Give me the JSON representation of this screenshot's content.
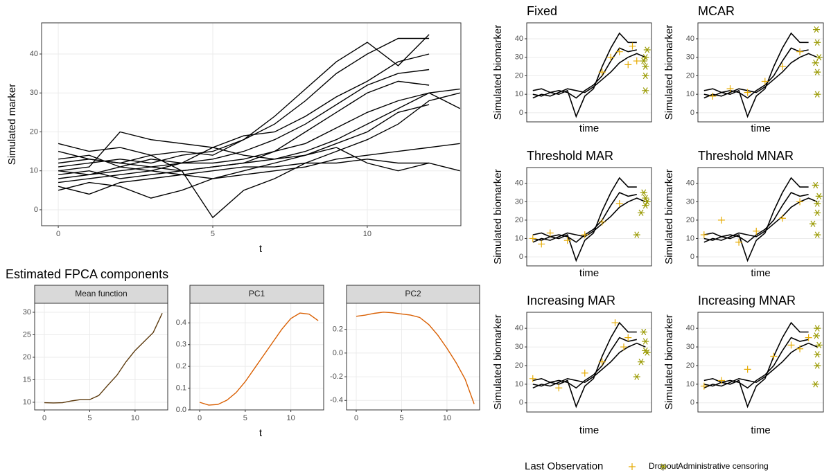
{
  "chart_data": [
    {
      "type": "line",
      "xlabel": "t",
      "ylabel": "Simulated marker",
      "color": "#000000",
      "x": [
        0,
        1,
        2,
        3,
        4,
        5,
        6,
        7,
        8,
        9,
        10,
        11,
        12,
        13
      ],
      "xlim": [
        -0.54,
        13.03
      ],
      "ylim": [
        -4.1,
        48
      ],
      "xticks": [
        0,
        5,
        10
      ],
      "yticks": [
        0,
        10,
        20,
        30,
        40
      ],
      "grid": true,
      "series": [
        {
          "values": [
            17,
            15,
            16,
            14,
            15,
            14,
            18,
            24,
            31,
            38,
            43,
            37,
            45,
            null
          ]
        },
        {
          "values": [
            10,
            11,
            20,
            18,
            17,
            16,
            14,
            13,
            15,
            18,
            22,
            26,
            30,
            31
          ]
        },
        {
          "values": [
            8,
            9,
            10,
            11,
            10,
            -2,
            5,
            8,
            12,
            15,
            18,
            22,
            28,
            30
          ]
        },
        {
          "values": [
            5,
            7,
            6,
            3,
            5,
            8,
            10,
            12,
            14,
            17,
            20,
            25,
            27,
            null
          ]
        },
        {
          "values": [
            12,
            13,
            12,
            11,
            12,
            13,
            15,
            18,
            22,
            27,
            32,
            35,
            36,
            null
          ]
        },
        {
          "values": [
            15,
            13,
            12,
            14,
            10,
            11,
            12,
            13,
            14,
            16,
            12,
            10,
            12,
            10
          ]
        },
        {
          "values": [
            9,
            10,
            8,
            9,
            10,
            11,
            12,
            15,
            20,
            25,
            30,
            33,
            32,
            null
          ]
        },
        {
          "values": [
            11,
            12,
            13,
            12,
            14,
            15,
            18,
            22,
            28,
            35,
            40,
            44,
            44,
            null
          ]
        },
        {
          "values": [
            7,
            8,
            9,
            10,
            9,
            8,
            9,
            10,
            11,
            13,
            14,
            15,
            16,
            17
          ]
        },
        {
          "values": [
            13,
            14,
            11,
            10,
            12,
            16,
            19,
            20,
            24,
            29,
            33,
            38,
            40,
            null
          ]
        },
        {
          "values": [
            6,
            4,
            7,
            8,
            9,
            10,
            11,
            11,
            12,
            12,
            13,
            12,
            12,
            null
          ]
        },
        {
          "values": [
            10,
            9,
            11,
            13,
            12,
            12,
            13,
            15,
            17,
            21,
            25,
            28,
            30,
            26
          ]
        }
      ]
    },
    {
      "type": "line",
      "title": "Estimated FPCA components",
      "strip": "Mean function",
      "color": "#5C3A0E",
      "x": [
        0,
        1,
        2,
        3,
        4,
        5,
        6,
        7,
        8,
        9,
        10,
        11,
        12,
        13
      ],
      "xlim": [
        -1.07,
        13.6
      ],
      "ylim": [
        8.3,
        32
      ],
      "xticks": [
        0,
        5,
        10
      ],
      "yticks": [
        10,
        15,
        20,
        25,
        30
      ],
      "grid": true,
      "series": [
        {
          "values": [
            9.9,
            9.85,
            9.9,
            10.3,
            10.6,
            10.6,
            11.5,
            13.8,
            16,
            19,
            21.5,
            23.5,
            25.5,
            29.8
          ]
        }
      ]
    },
    {
      "type": "line",
      "strip": "PC1",
      "xlabel": "t",
      "color": "#D95F02",
      "x": [
        0,
        1,
        2,
        3,
        4,
        5,
        6,
        7,
        8,
        9,
        10,
        11,
        12,
        13
      ],
      "xlim": [
        -1.07,
        13.6
      ],
      "ylim": [
        0,
        0.49
      ],
      "xticks": [
        0,
        5,
        10
      ],
      "yticks": [
        {
          "value": 0,
          "label": "0.0"
        },
        0.1,
        0.2,
        0.3,
        0.4
      ],
      "grid": true,
      "series": [
        {
          "values": [
            0.035,
            0.022,
            0.025,
            0.045,
            0.08,
            0.13,
            0.19,
            0.25,
            0.31,
            0.37,
            0.42,
            0.445,
            0.44,
            0.41
          ]
        }
      ]
    },
    {
      "type": "line",
      "strip": "PC2",
      "color": "#D95F02",
      "x": [
        0,
        1,
        2,
        3,
        4,
        5,
        6,
        7,
        8,
        9,
        10,
        11,
        12,
        13
      ],
      "xlim": [
        -1.07,
        13.6
      ],
      "ylim": [
        -0.48,
        0.42
      ],
      "xticks": [
        0,
        5,
        10
      ],
      "yticks": [
        -0.4,
        -0.2,
        {
          "value": 0,
          "label": "0.0"
        },
        0.2
      ],
      "grid": true,
      "series": [
        {
          "values": [
            0.31,
            0.32,
            0.335,
            0.345,
            0.34,
            0.33,
            0.32,
            0.3,
            0.24,
            0.15,
            0.04,
            -0.08,
            -0.22,
            -0.43
          ]
        }
      ]
    },
    {
      "type": "line",
      "title": "Fixed",
      "xlabel": "time",
      "ylabel": "Simulated biomarker",
      "color": "#000000",
      "x": [
        0,
        1,
        2,
        3,
        4,
        5,
        6,
        7,
        8,
        9,
        10,
        11,
        12,
        13
      ],
      "xlim": [
        -0.7,
        13.7
      ],
      "ylim": [
        -4.9,
        48.6
      ],
      "yticks": [
        0,
        10,
        20,
        30,
        40
      ],
      "grid": true,
      "series": [
        {
          "values": [
            10,
            9,
            11,
            12,
            11,
            8,
            12,
            15,
            20,
            28,
            35,
            33,
            34,
            null
          ]
        },
        {
          "values": [
            8,
            10,
            9,
            11,
            13,
            12,
            11,
            14,
            18,
            22,
            27,
            30,
            32,
            30
          ]
        },
        {
          "values": [
            12,
            13,
            11,
            10,
            12,
            -2,
            9,
            13,
            25,
            35,
            43,
            38,
            38,
            null
          ]
        }
      ],
      "points": [
        {
          "x": [
            8,
            9,
            10,
            11,
            11.5,
            12
          ],
          "y": [
            22,
            30,
            33,
            26,
            36,
            28
          ]
        },
        {
          "x": [
            13,
            13,
            13,
            13,
            13.2,
            12.8
          ],
          "y": [
            12,
            20,
            25,
            30,
            34,
            28
          ]
        }
      ]
    },
    {
      "type": "line",
      "title": "MCAR",
      "xlabel": "time",
      "ylabel": "Simulated biomarker",
      "color": "#000000",
      "x": [
        0,
        1,
        2,
        3,
        4,
        5,
        6,
        7,
        8,
        9,
        10,
        11,
        12,
        13
      ],
      "xlim": [
        -0.7,
        13.7
      ],
      "ylim": [
        -4.9,
        48.6
      ],
      "yticks": [
        0,
        10,
        20,
        30,
        40
      ],
      "grid": true,
      "series": [
        {
          "values": [
            10,
            9,
            11,
            12,
            11,
            8,
            12,
            15,
            20,
            28,
            35,
            33,
            34,
            null
          ]
        },
        {
          "values": [
            8,
            10,
            9,
            11,
            13,
            12,
            11,
            14,
            18,
            22,
            27,
            30,
            32,
            30
          ]
        },
        {
          "values": [
            12,
            13,
            11,
            10,
            12,
            -2,
            9,
            13,
            25,
            35,
            43,
            38,
            38,
            null
          ]
        }
      ],
      "points": [
        {
          "x": [
            1,
            3,
            5,
            7,
            9,
            11
          ],
          "y": [
            9,
            13,
            11,
            17,
            25,
            33
          ]
        },
        {
          "x": [
            13,
            13,
            12.8,
            13.2,
            13,
            12.9
          ],
          "y": [
            10,
            22,
            27,
            30,
            38,
            45
          ]
        }
      ]
    },
    {
      "type": "line",
      "title": "Threshold MAR",
      "xlabel": "time",
      "ylabel": "Simulated biomarker",
      "color": "#000000",
      "x": [
        0,
        1,
        2,
        3,
        4,
        5,
        6,
        7,
        8,
        9,
        10,
        11,
        12,
        13
      ],
      "xlim": [
        -0.7,
        13.7
      ],
      "ylim": [
        -4.9,
        48.6
      ],
      "yticks": [
        0,
        10,
        20,
        30,
        40
      ],
      "grid": true,
      "series": [
        {
          "values": [
            10,
            9,
            11,
            12,
            11,
            8,
            12,
            15,
            20,
            28,
            35,
            33,
            34,
            null
          ]
        },
        {
          "values": [
            8,
            10,
            9,
            11,
            13,
            12,
            11,
            14,
            18,
            22,
            27,
            30,
            32,
            30
          ]
        },
        {
          "values": [
            12,
            13,
            11,
            10,
            12,
            -2,
            9,
            13,
            25,
            35,
            43,
            38,
            38,
            null
          ]
        }
      ],
      "points": [
        {
          "x": [
            0,
            1,
            2,
            4,
            6,
            8,
            10
          ],
          "y": [
            10,
            7,
            13,
            9,
            12,
            19,
            29
          ]
        },
        {
          "x": [
            12,
            12.5,
            13,
            13,
            13.2,
            12.8
          ],
          "y": [
            12,
            24,
            28,
            32,
            30,
            35
          ]
        }
      ]
    },
    {
      "type": "line",
      "title": "Threshold MNAR",
      "xlabel": "time",
      "ylabel": "Simulated biomarker",
      "color": "#000000",
      "x": [
        0,
        1,
        2,
        3,
        4,
        5,
        6,
        7,
        8,
        9,
        10,
        11,
        12,
        13
      ],
      "xlim": [
        -0.7,
        13.7
      ],
      "ylim": [
        -4.9,
        48.6
      ],
      "yticks": [
        0,
        10,
        20,
        30,
        40
      ],
      "grid": true,
      "series": [
        {
          "values": [
            10,
            9,
            11,
            12,
            11,
            8,
            12,
            15,
            20,
            28,
            35,
            33,
            34,
            null
          ]
        },
        {
          "values": [
            8,
            10,
            9,
            11,
            13,
            12,
            11,
            14,
            18,
            22,
            27,
            30,
            32,
            30
          ]
        },
        {
          "values": [
            12,
            13,
            11,
            10,
            12,
            -2,
            9,
            13,
            25,
            35,
            43,
            38,
            38,
            null
          ]
        }
      ],
      "points": [
        {
          "x": [
            0,
            2,
            4,
            6,
            9,
            11
          ],
          "y": [
            12,
            20,
            8,
            14,
            21,
            30
          ]
        },
        {
          "x": [
            12.5,
            13,
            13,
            13.2,
            12.8,
            13
          ],
          "y": [
            18,
            24,
            29,
            33,
            39,
            12
          ]
        }
      ]
    },
    {
      "type": "line",
      "title": "Increasing MAR",
      "xlabel": "time",
      "ylabel": "Simulated biomarker",
      "color": "#000000",
      "x": [
        0,
        1,
        2,
        3,
        4,
        5,
        6,
        7,
        8,
        9,
        10,
        11,
        12,
        13
      ],
      "xlim": [
        -0.7,
        13.7
      ],
      "ylim": [
        -4.9,
        48.6
      ],
      "yticks": [
        0,
        10,
        20,
        30,
        40
      ],
      "grid": true,
      "series": [
        {
          "values": [
            10,
            9,
            11,
            12,
            11,
            8,
            12,
            15,
            20,
            28,
            35,
            33,
            34,
            null
          ]
        },
        {
          "values": [
            8,
            10,
            9,
            11,
            13,
            12,
            11,
            14,
            18,
            22,
            27,
            30,
            32,
            30
          ]
        },
        {
          "values": [
            12,
            13,
            11,
            10,
            12,
            -2,
            9,
            13,
            25,
            35,
            43,
            38,
            38,
            null
          ]
        }
      ],
      "points": [
        {
          "x": [
            0,
            3,
            6,
            8,
            9.5,
            10.5,
            11
          ],
          "y": [
            13,
            8,
            16,
            22,
            43,
            30,
            35
          ]
        },
        {
          "x": [
            12,
            12.5,
            13,
            13,
            13.2,
            12.8
          ],
          "y": [
            14,
            22,
            28,
            33,
            27,
            38
          ]
        }
      ]
    },
    {
      "type": "line",
      "title": "Increasing MNAR",
      "xlabel": "time",
      "ylabel": "Simulated biomarker",
      "color": "#000000",
      "x": [
        0,
        1,
        2,
        3,
        4,
        5,
        6,
        7,
        8,
        9,
        10,
        11,
        12,
        13
      ],
      "xlim": [
        -0.7,
        13.7
      ],
      "ylim": [
        -4.9,
        48.6
      ],
      "yticks": [
        0,
        10,
        20,
        30,
        40
      ],
      "grid": true,
      "series": [
        {
          "values": [
            10,
            9,
            11,
            12,
            11,
            8,
            12,
            15,
            20,
            28,
            35,
            33,
            34,
            null
          ]
        },
        {
          "values": [
            8,
            10,
            9,
            11,
            13,
            12,
            11,
            14,
            18,
            22,
            27,
            30,
            32,
            30
          ]
        },
        {
          "values": [
            12,
            13,
            11,
            10,
            12,
            -2,
            9,
            13,
            25,
            35,
            43,
            38,
            38,
            null
          ]
        }
      ],
      "points": [
        {
          "x": [
            0,
            2,
            5,
            8,
            10,
            11,
            12
          ],
          "y": [
            9,
            12,
            18,
            25,
            31,
            29,
            35
          ]
        },
        {
          "x": [
            12.8,
            13,
            13,
            13.2,
            12.9,
            13
          ],
          "y": [
            10,
            20,
            26,
            31,
            36,
            40
          ]
        }
      ]
    }
  ],
  "legend": {
    "title": "Last Observation",
    "items": [
      {
        "name": "Dropout",
        "color": "#E6AB02",
        "shape": "plus"
      },
      {
        "name": "Administrative censoring",
        "color": "#999900",
        "shape": "asterisk"
      }
    ]
  }
}
